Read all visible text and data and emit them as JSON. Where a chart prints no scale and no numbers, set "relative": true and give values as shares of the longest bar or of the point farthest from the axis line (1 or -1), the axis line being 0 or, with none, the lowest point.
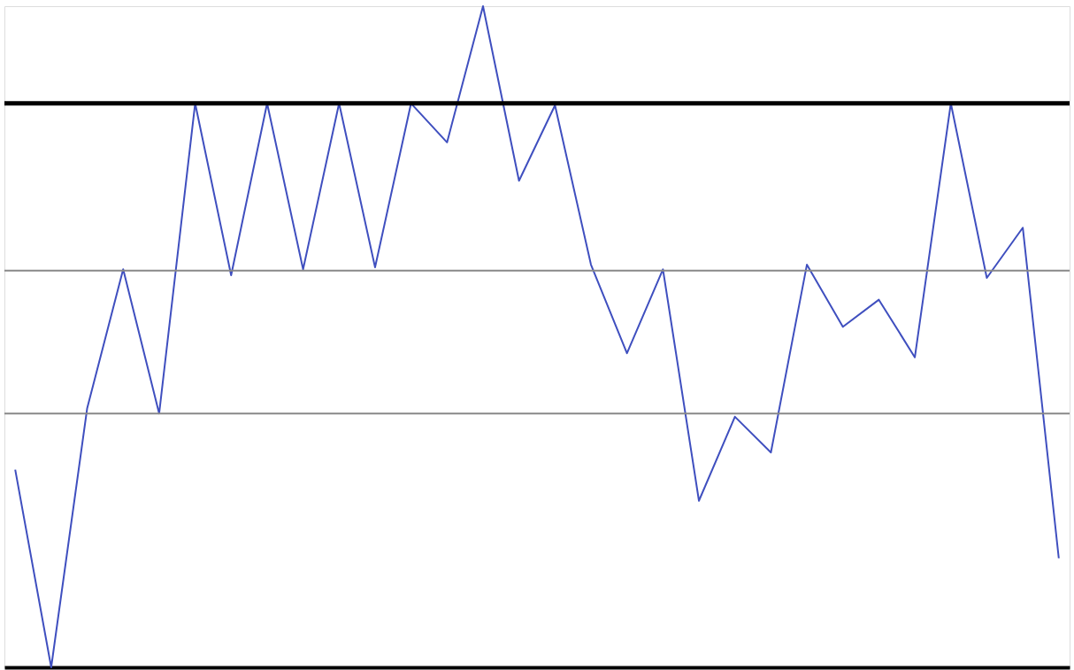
{
  "chart_data": {
    "type": "line",
    "relative": true,
    "tick_labels": false,
    "marker": "none",
    "line_style": "solid",
    "categories": [
      null,
      null,
      null,
      null,
      null,
      null,
      null,
      null,
      null,
      null,
      null,
      null,
      null,
      null,
      null,
      null,
      null,
      null,
      null,
      null,
      null,
      null,
      null,
      null,
      null,
      null,
      null,
      null,
      null,
      null
    ],
    "series": [
      {
        "color": "#3f4fbf",
        "values": [
          0.299,
          0,
          0.392,
          0.602,
          0.384,
          0.853,
          0.593,
          0.853,
          0.602,
          0.853,
          0.605,
          0.853,
          0.794,
          1,
          0.736,
          0.85,
          0.609,
          0.475,
          0.602,
          0.252,
          0.379,
          0.325,
          0.609,
          0.515,
          0.556,
          0.469,
          0.853,
          0.589,
          0.665,
          0.165
        ]
      }
    ],
    "ref_lines": [
      {
        "axis": "y",
        "value": 0.853,
        "color": "#000000"
      },
      {
        "axis": "y",
        "value": 0.6,
        "color": "#888888"
      },
      {
        "axis": "y",
        "value": 0.384,
        "color": "#888888"
      }
    ]
  }
}
